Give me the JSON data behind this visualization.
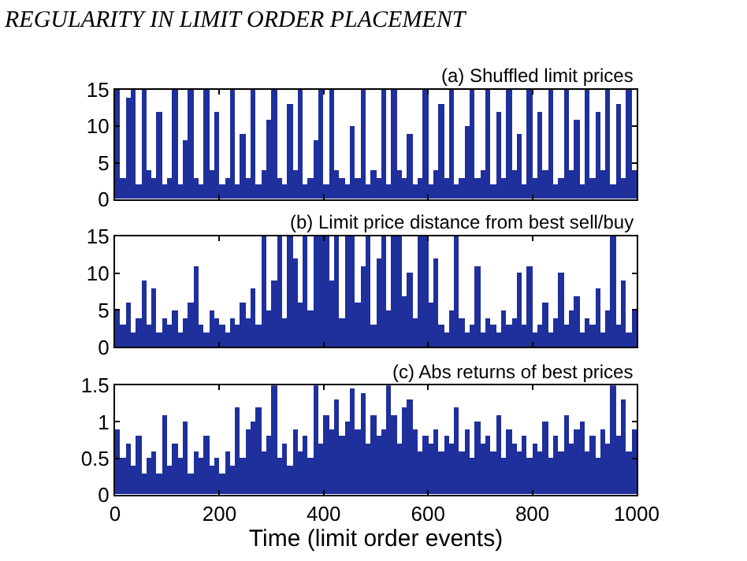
{
  "chart_data": [
    {
      "type": "bar",
      "title": "(a) Shuffled limit prices",
      "annotations": [
        "REGULARITY IN LIMIT ORDER PLACEMENT"
      ],
      "color": "#1f2f9c",
      "tick_labels": "y",
      "legend": false,
      "x": [
        5,
        15,
        25,
        35,
        45,
        55,
        65,
        75,
        85,
        95,
        105,
        115,
        125,
        135,
        145,
        155,
        165,
        175,
        185,
        195,
        205,
        215,
        225,
        235,
        245,
        255,
        265,
        275,
        285,
        295,
        305,
        315,
        325,
        335,
        345,
        355,
        365,
        375,
        385,
        395,
        405,
        415,
        425,
        435,
        445,
        455,
        465,
        475,
        485,
        495,
        505,
        515,
        525,
        535,
        545,
        555,
        565,
        575,
        585,
        595,
        605,
        615,
        625,
        635,
        645,
        655,
        665,
        675,
        685,
        695,
        705,
        715,
        725,
        735,
        745,
        755,
        765,
        775,
        785,
        795,
        805,
        815,
        825,
        835,
        845,
        855,
        865,
        875,
        885,
        895,
        905,
        915,
        925,
        935,
        945,
        955,
        965,
        975,
        985,
        995
      ],
      "values": [
        15,
        3,
        14,
        15,
        2,
        15,
        4,
        3,
        12,
        2,
        3,
        15,
        2,
        8,
        15,
        3,
        2,
        15,
        4,
        12,
        2,
        3,
        15,
        2,
        9,
        3,
        15,
        2,
        4,
        11,
        15,
        3,
        2,
        13,
        4,
        15,
        2,
        3,
        8,
        15,
        2,
        15,
        4,
        3,
        2,
        10,
        3,
        15,
        2,
        4,
        3,
        15,
        2,
        15,
        4,
        3,
        9,
        2,
        3,
        15,
        2,
        4,
        13,
        3,
        15,
        2,
        3,
        10,
        15,
        3,
        4,
        15,
        2,
        12,
        3,
        15,
        4,
        9,
        2,
        15,
        3,
        12,
        4,
        15,
        2,
        3,
        15,
        4,
        11,
        2,
        15,
        3,
        12,
        4,
        15,
        2,
        13,
        3,
        15,
        4
      ],
      "xlim": [
        0,
        1000
      ],
      "xticks": [
        0,
        200,
        400,
        600,
        800,
        1000
      ],
      "ylim": [
        0,
        15
      ],
      "yticks": [
        0,
        5,
        10,
        15
      ]
    },
    {
      "type": "bar",
      "title": "(b) Limit price distance from best sell/buy",
      "color": "#1f2f9c",
      "tick_labels": "y",
      "legend": false,
      "x": [
        5,
        15,
        25,
        35,
        45,
        55,
        65,
        75,
        85,
        95,
        105,
        115,
        125,
        135,
        145,
        155,
        165,
        175,
        185,
        195,
        205,
        215,
        225,
        235,
        245,
        255,
        265,
        275,
        285,
        295,
        305,
        315,
        325,
        335,
        345,
        355,
        365,
        375,
        385,
        395,
        405,
        415,
        425,
        435,
        445,
        455,
        465,
        475,
        485,
        495,
        505,
        515,
        525,
        535,
        545,
        555,
        565,
        575,
        585,
        595,
        605,
        615,
        625,
        635,
        645,
        655,
        665,
        675,
        685,
        695,
        705,
        715,
        725,
        735,
        745,
        755,
        765,
        775,
        785,
        795,
        805,
        815,
        825,
        835,
        845,
        855,
        865,
        875,
        885,
        895,
        905,
        915,
        925,
        935,
        945,
        955,
        965,
        975,
        985,
        995
      ],
      "values": [
        5,
        3,
        6,
        2,
        4,
        9,
        3,
        8,
        2,
        4,
        3,
        5,
        2,
        4,
        6,
        11,
        3,
        2,
        5,
        4,
        3,
        2,
        4,
        3,
        6,
        4,
        8,
        3,
        15,
        5,
        9,
        15,
        4,
        15,
        12,
        6,
        15,
        5,
        15,
        15,
        15,
        9,
        15,
        4,
        15,
        15,
        6,
        11,
        15,
        3,
        12,
        15,
        5,
        15,
        15,
        7,
        10,
        4,
        15,
        15,
        6,
        12,
        3,
        2,
        5,
        15,
        4,
        2,
        3,
        11,
        2,
        4,
        3,
        2,
        5,
        3,
        4,
        10,
        3,
        11,
        2,
        3,
        6,
        2,
        4,
        10,
        3,
        5,
        7,
        2,
        4,
        3,
        8,
        2,
        5,
        15,
        3,
        9,
        2,
        5
      ],
      "xlim": [
        0,
        1000
      ],
      "xticks": [
        0,
        200,
        400,
        600,
        800,
        1000
      ],
      "ylim": [
        0,
        15
      ],
      "yticks": [
        0,
        5,
        10,
        15
      ]
    },
    {
      "type": "bar",
      "title": "(c) Abs returns of best prices",
      "xlabel": "Time (limit order events)",
      "color": "#1f2f9c",
      "legend": false,
      "x": [
        5,
        15,
        25,
        35,
        45,
        55,
        65,
        75,
        85,
        95,
        105,
        115,
        125,
        135,
        145,
        155,
        165,
        175,
        185,
        195,
        205,
        215,
        225,
        235,
        245,
        255,
        265,
        275,
        285,
        295,
        305,
        315,
        325,
        335,
        345,
        355,
        365,
        375,
        385,
        395,
        405,
        415,
        425,
        435,
        445,
        455,
        465,
        475,
        485,
        495,
        505,
        515,
        525,
        535,
        545,
        555,
        565,
        575,
        585,
        595,
        605,
        615,
        625,
        635,
        645,
        655,
        665,
        675,
        685,
        695,
        705,
        715,
        725,
        735,
        745,
        755,
        765,
        775,
        785,
        795,
        805,
        815,
        825,
        835,
        845,
        855,
        865,
        875,
        885,
        895,
        905,
        915,
        925,
        935,
        945,
        955,
        965,
        975,
        985,
        995
      ],
      "values": [
        0.9,
        0.5,
        0.7,
        0.4,
        0.8,
        0.3,
        0.5,
        0.6,
        0.3,
        1.1,
        0.4,
        0.7,
        0.5,
        1.0,
        0.3,
        0.6,
        0.5,
        0.8,
        0.4,
        0.5,
        0.3,
        0.6,
        0.4,
        1.2,
        0.5,
        0.9,
        1.0,
        1.2,
        0.6,
        0.8,
        1.5,
        0.5,
        0.7,
        0.4,
        0.9,
        0.6,
        0.8,
        0.5,
        1.5,
        0.7,
        1.1,
        0.9,
        1.3,
        0.8,
        1.0,
        1.45,
        0.9,
        1.4,
        0.7,
        1.1,
        0.8,
        0.9,
        1.5,
        1.1,
        0.7,
        1.2,
        1.3,
        0.9,
        0.6,
        0.8,
        0.7,
        0.9,
        0.6,
        0.8,
        0.7,
        1.2,
        0.6,
        0.9,
        0.5,
        1.0,
        0.7,
        0.8,
        0.6,
        1.1,
        0.5,
        0.9,
        0.7,
        0.6,
        0.8,
        0.5,
        0.7,
        0.6,
        1.0,
        0.5,
        0.8,
        0.6,
        1.1,
        0.7,
        0.9,
        1.0,
        0.6,
        0.8,
        0.5,
        0.9,
        0.7,
        1.5,
        0.8,
        1.3,
        0.6,
        0.9
      ],
      "xlim": [
        0,
        1000
      ],
      "xticks": [
        0,
        200,
        400,
        600,
        800,
        1000
      ],
      "ylim": [
        0,
        1.5
      ],
      "yticks": [
        0,
        0.5,
        1,
        1.5
      ]
    }
  ]
}
